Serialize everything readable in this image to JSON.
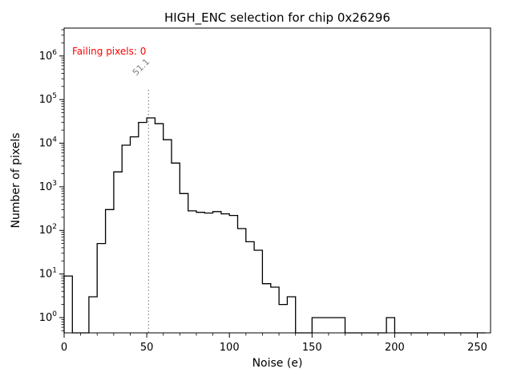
{
  "chart_data": {
    "type": "bar",
    "subtype": "step-histogram",
    "title": "HIGH_ENC selection for chip 0x26296",
    "xlabel": "Noise (e)",
    "ylabel": "Number of pixels",
    "annotation": {
      "text": "Failing pixels: 0",
      "color": "#ff0000"
    },
    "vline": {
      "x": 51.1,
      "label": "51.1",
      "color": "#888888",
      "style": "dotted"
    },
    "xlim": [
      0,
      258
    ],
    "ylim_log": [
      -0.35,
      6.64
    ],
    "yscale": "log",
    "grid": false,
    "x_ticks": [
      0,
      50,
      100,
      150,
      200,
      250
    ],
    "x_minor_step": 10,
    "y_tick_exponents": [
      0,
      1,
      2,
      3,
      4,
      5,
      6
    ],
    "hist": {
      "bin_start": 0,
      "bin_width": 5,
      "counts": [
        9,
        0,
        0,
        3,
        50,
        300,
        2200,
        9000,
        14000,
        30000,
        38000,
        28000,
        12000,
        3500,
        700,
        280,
        260,
        250,
        270,
        240,
        220,
        110,
        55,
        35,
        6,
        5,
        2,
        3,
        0,
        0,
        1,
        1,
        1,
        1,
        0,
        0,
        0,
        0,
        0,
        1,
        0,
        0,
        0,
        0,
        0,
        0,
        0,
        0,
        0,
        0,
        0
      ]
    },
    "colors": {
      "line": "#000000",
      "axes": "#000000",
      "ticks": "#000000"
    }
  }
}
